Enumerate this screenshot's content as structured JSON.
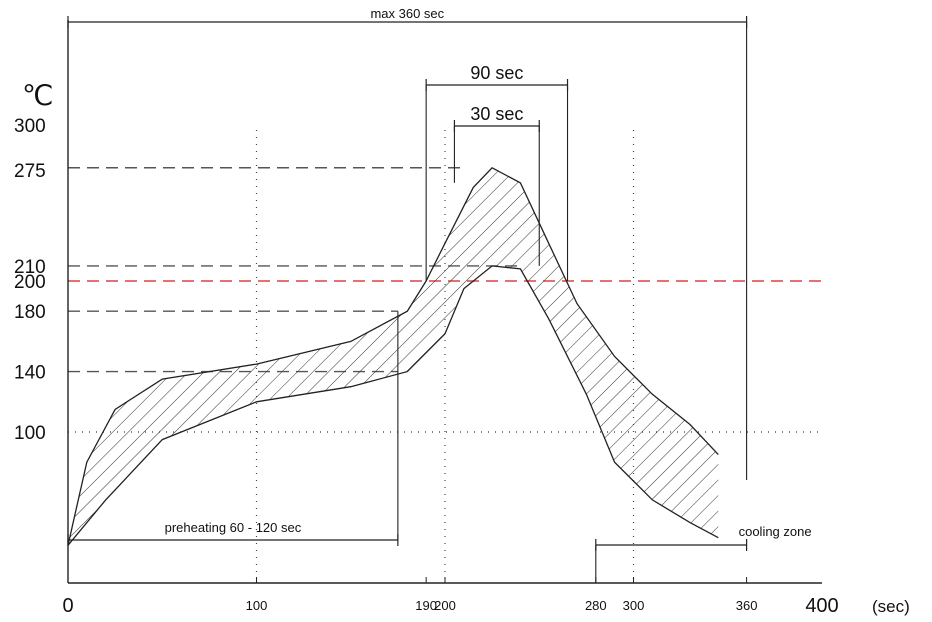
{
  "chart_data": {
    "type": "area",
    "title": "",
    "xlabel": "(sec)",
    "ylabel": "℃",
    "xlim": [
      0,
      400
    ],
    "ylim": [
      0,
      300
    ],
    "x_ticks": [
      0,
      100,
      190,
      200,
      280,
      300,
      360,
      400
    ],
    "y_ticks": [
      100,
      140,
      180,
      200,
      210,
      275,
      300
    ],
    "series": [
      {
        "values": [
          [
            0,
            25
          ],
          [
            10,
            80
          ],
          [
            25,
            115
          ],
          [
            50,
            135
          ],
          [
            100,
            145
          ],
          [
            150,
            160
          ],
          [
            180,
            180
          ],
          [
            190,
            200
          ],
          [
            200,
            225
          ],
          [
            215,
            262
          ],
          [
            225,
            275
          ],
          [
            240,
            265
          ],
          [
            255,
            225
          ],
          [
            270,
            185
          ],
          [
            290,
            150
          ],
          [
            310,
            125
          ],
          [
            330,
            105
          ],
          [
            345,
            85
          ]
        ]
      },
      {
        "values": [
          [
            0,
            25
          ],
          [
            20,
            55
          ],
          [
            50,
            95
          ],
          [
            100,
            120
          ],
          [
            150,
            130
          ],
          [
            180,
            140
          ],
          [
            200,
            165
          ],
          [
            210,
            195
          ],
          [
            225,
            210
          ],
          [
            240,
            208
          ],
          [
            255,
            175
          ],
          [
            275,
            125
          ],
          [
            290,
            80
          ],
          [
            310,
            55
          ],
          [
            330,
            40
          ],
          [
            345,
            30
          ]
        ]
      }
    ],
    "reference_lines": [
      {
        "y": 275,
        "x_end": 210,
        "style": "dashed",
        "color": "#555555"
      },
      {
        "y": 210,
        "x_end": 240,
        "style": "dashed",
        "color": "#555555"
      },
      {
        "y": 200,
        "x_end": 400,
        "style": "dashed",
        "color": "#e04040"
      },
      {
        "y": 180,
        "x_end": 175,
        "style": "dashed",
        "color": "#555555"
      },
      {
        "y": 140,
        "x_end": 175,
        "style": "dashed",
        "color": "#555555"
      },
      {
        "y": 100,
        "x_start": 0,
        "x_end": 400,
        "style": "dotted",
        "color": "#555555"
      }
    ],
    "vertical_gridlines": [
      100,
      200,
      300
    ],
    "annotations": [
      {
        "label": "max 360 sec",
        "x_start": 0,
        "x_end": 360
      },
      {
        "label": "90 sec",
        "x_start": 190,
        "x_end": 265
      },
      {
        "label": "30 sec",
        "x_start": 205,
        "x_end": 250
      },
      {
        "label": "preheating  60 - 120 sec",
        "x_start": 0,
        "x_end": 175
      },
      {
        "label": "cooling zone",
        "x_start": 280,
        "x_end": 360
      }
    ],
    "colors": {
      "hatch": "#333333",
      "axis": "#222222",
      "red_line": "#e04040",
      "dashed": "#555555"
    }
  }
}
